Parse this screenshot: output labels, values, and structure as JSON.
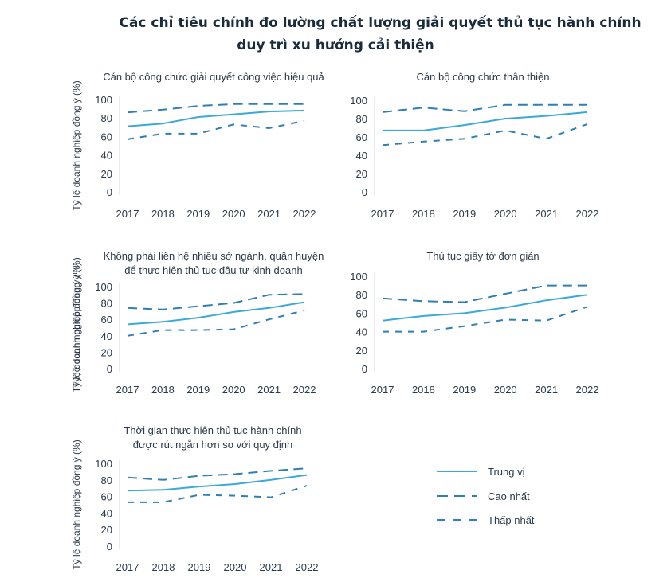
{
  "title_lines": [
    "Các chỉ tiêu chính đo lường chất lượng giải quyết thủ tục hành chính",
    "duy trì xu hướng cải thiện"
  ],
  "legend": [
    {
      "name": "Trung vị",
      "style": "solid"
    },
    {
      "name": "Cao nhất",
      "style": "long-dash"
    },
    {
      "name": "Thấp nhất",
      "style": "dash"
    }
  ],
  "colors": {
    "median": "#3aa9d6",
    "highest": "#2e7fb3",
    "lowest": "#2e7fb3",
    "axis": "#cfd6dd",
    "text": "#2b3a4a"
  },
  "chart_data": [
    {
      "type": "line",
      "title_lines": [
        "Cán bộ công chức giải quyết công việc hiệu quả"
      ],
      "ylabel": "Tỷ lệ doanh nghiệp đồng ý (%)",
      "categories": [
        "2017",
        "2018",
        "2019",
        "2020",
        "2021",
        "2022"
      ],
      "yticks": [
        0,
        20,
        40,
        60,
        80,
        100
      ],
      "ylim": [
        0,
        100
      ],
      "series": [
        {
          "name": "Trung vị",
          "values": [
            71,
            74,
            81,
            84,
            87,
            88
          ]
        },
        {
          "name": "Cao nhất",
          "values": [
            86,
            89,
            93,
            95,
            95,
            95
          ]
        },
        {
          "name": "Thấp nhất",
          "values": [
            57,
            63,
            63,
            73,
            69,
            77
          ]
        }
      ]
    },
    {
      "type": "line",
      "title_lines": [
        "Cán bộ công chức thân thiện"
      ],
      "ylabel": "",
      "categories": [
        "2017",
        "2018",
        "2019",
        "2020",
        "2021",
        "2022"
      ],
      "yticks": [
        0,
        20,
        40,
        60,
        80,
        100
      ],
      "ylim": [
        0,
        100
      ],
      "series": [
        {
          "name": "Trung vị",
          "values": [
            67,
            67,
            73,
            80,
            83,
            87
          ]
        },
        {
          "name": "Cao nhất",
          "values": [
            87,
            92,
            88,
            95,
            95,
            95
          ]
        },
        {
          "name": "Thấp nhất",
          "values": [
            51,
            55,
            58,
            67,
            58,
            74
          ]
        }
      ]
    },
    {
      "type": "line",
      "title_lines": [
        "Không phải liên hệ nhiều sở ngành, quận huyện",
        "để thực hiện thủ tục đầu tư kinh doanh"
      ],
      "ylabel": "Tỷ lệ doanh nghiệp đồng ý (%)",
      "categories": [
        "2017",
        "2018",
        "2019",
        "2020",
        "2021",
        "2022"
      ],
      "yticks": [
        0,
        20,
        40,
        60,
        80,
        100
      ],
      "ylim": [
        0,
        100
      ],
      "series": [
        {
          "name": "Trung vị",
          "values": [
            54,
            57,
            62,
            69,
            74,
            81
          ]
        },
        {
          "name": "Cao nhất",
          "values": [
            74,
            72,
            76,
            80,
            90,
            91
          ]
        },
        {
          "name": "Thấp nhất",
          "values": [
            40,
            47,
            47,
            48,
            60,
            71
          ]
        }
      ]
    },
    {
      "type": "line",
      "title_lines": [
        "Thủ tục giấy tờ đơn giản"
      ],
      "ylabel": "Tỷ lệ doanh nghiệp đồng ý (%)",
      "categories": [
        "2017",
        "2018",
        "2019",
        "2020",
        "2021",
        "2022"
      ],
      "yticks": [
        0,
        20,
        40,
        60,
        80,
        100
      ],
      "ylim": [
        0,
        100
      ],
      "series": [
        {
          "name": "Trung vị",
          "values": [
            52,
            57,
            60,
            66,
            74,
            80
          ]
        },
        {
          "name": "Cao nhất",
          "values": [
            76,
            73,
            72,
            81,
            90,
            90
          ]
        },
        {
          "name": "Thấp nhất",
          "values": [
            40,
            40,
            46,
            53,
            52,
            67
          ]
        }
      ]
    },
    {
      "type": "line",
      "title_lines": [
        "Thời gian thực hiện thủ tục hành chính",
        "được rút ngắn hơn so với quy định"
      ],
      "ylabel": "Tỷ lệ doanh nghiệp đồng ý (%)",
      "categories": [
        "2017",
        "2018",
        "2019",
        "2020",
        "2021",
        "2022"
      ],
      "yticks": [
        0,
        20,
        40,
        60,
        80,
        100
      ],
      "ylim": [
        0,
        100
      ],
      "series": [
        {
          "name": "Trung vị",
          "values": [
            67,
            68,
            72,
            75,
            80,
            86
          ]
        },
        {
          "name": "Cao nhất",
          "values": [
            83,
            80,
            85,
            87,
            91,
            94
          ]
        },
        {
          "name": "Thấp nhất",
          "values": [
            53,
            53,
            62,
            61,
            59,
            73
          ]
        }
      ]
    }
  ]
}
